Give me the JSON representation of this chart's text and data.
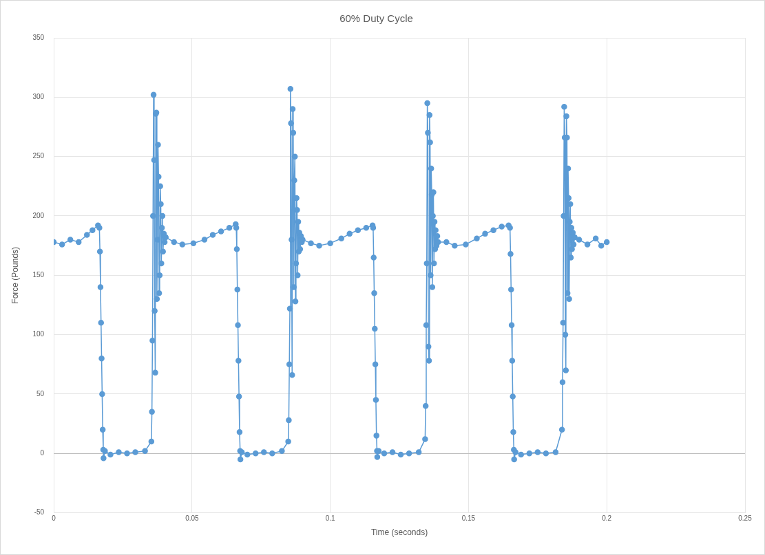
{
  "chart_data": {
    "type": "line",
    "title": "60% Duty Cycle",
    "xlabel": "Time (seconds)",
    "ylabel": "Force (Pounds)",
    "xlim": [
      0,
      0.25
    ],
    "xticks": [
      0,
      0.05,
      0.1,
      0.15,
      0.2,
      0.25
    ],
    "ylim": [
      -50,
      350
    ],
    "yticks": [
      -50,
      0,
      50,
      100,
      150,
      200,
      250,
      300,
      350
    ],
    "grid": true,
    "legend": false,
    "marker": "circle",
    "line_style": "solid",
    "series": [
      {
        "color": "#5b9bd5",
        "x": [
          0,
          0.003,
          0.006,
          0.009,
          0.012,
          0.014,
          0.016,
          0.0165,
          0.0167,
          0.0169,
          0.0171,
          0.0173,
          0.0175,
          0.0177,
          0.0179,
          0.018,
          0.0185,
          0.0205,
          0.0235,
          0.0265,
          0.0295,
          0.033,
          0.0353,
          0.0355,
          0.0357,
          0.0359,
          0.0361,
          0.0363,
          0.0365,
          0.0367,
          0.0369,
          0.0371,
          0.0373,
          0.0375,
          0.0377,
          0.0379,
          0.0381,
          0.0383,
          0.0385,
          0.0387,
          0.0389,
          0.0391,
          0.0393,
          0.0395,
          0.0398,
          0.0401,
          0.0405,
          0.0435,
          0.0465,
          0.0505,
          0.0545,
          0.0575,
          0.0605,
          0.0635,
          0.0658,
          0.066,
          0.0662,
          0.0664,
          0.0666,
          0.0668,
          0.067,
          0.0672,
          0.0674,
          0.0675,
          0.068,
          0.07,
          0.073,
          0.076,
          0.079,
          0.0825,
          0.0848,
          0.085,
          0.0852,
          0.0854,
          0.0856,
          0.0858,
          0.086,
          0.0862,
          0.0864,
          0.0866,
          0.0868,
          0.087,
          0.0872,
          0.0874,
          0.0876,
          0.0878,
          0.088,
          0.0882,
          0.0884,
          0.0886,
          0.0888,
          0.0891,
          0.0894,
          0.0897,
          0.09,
          0.093,
          0.096,
          0.1,
          0.104,
          0.107,
          0.11,
          0.113,
          0.1153,
          0.1155,
          0.1157,
          0.1159,
          0.1161,
          0.1163,
          0.1165,
          0.1167,
          0.1169,
          0.117,
          0.1175,
          0.1195,
          0.1225,
          0.1255,
          0.1285,
          0.132,
          0.1343,
          0.1345,
          0.1347,
          0.1349,
          0.1351,
          0.1353,
          0.1355,
          0.1357,
          0.1359,
          0.1361,
          0.1363,
          0.1365,
          0.1367,
          0.1369,
          0.1371,
          0.1373,
          0.1375,
          0.1377,
          0.1379,
          0.1381,
          0.1384,
          0.1387,
          0.139,
          0.142,
          0.145,
          0.149,
          0.153,
          0.156,
          0.159,
          0.162,
          0.1645,
          0.165,
          0.1652,
          0.1654,
          0.1656,
          0.1658,
          0.166,
          0.1662,
          0.1664,
          0.1665,
          0.167,
          0.169,
          0.172,
          0.175,
          0.178,
          0.1815,
          0.1838,
          0.184,
          0.1842,
          0.1844,
          0.1846,
          0.1848,
          0.185,
          0.1852,
          0.1854,
          0.1856,
          0.1858,
          0.186,
          0.1862,
          0.1864,
          0.1866,
          0.1868,
          0.187,
          0.1872,
          0.1874,
          0.1877,
          0.188,
          0.1884,
          0.19,
          0.193,
          0.196,
          0.198,
          0.2
        ],
        "values": [
          178,
          176,
          180,
          178,
          184,
          188,
          192,
          190,
          170,
          140,
          110,
          80,
          50,
          20,
          3,
          -4,
          2,
          -1,
          1,
          0,
          1,
          2,
          10,
          35,
          95,
          200,
          302,
          247,
          120,
          68,
          286,
          287,
          130,
          180,
          260,
          233,
          135,
          150,
          225,
          210,
          160,
          190,
          200,
          170,
          185,
          178,
          182,
          178,
          176,
          177,
          180,
          184,
          187,
          190,
          193,
          190,
          172,
          138,
          108,
          78,
          48,
          18,
          2,
          -5,
          1,
          -1,
          0,
          1,
          0,
          2,
          10,
          28,
          75,
          122,
          307,
          278,
          180,
          66,
          290,
          270,
          140,
          230,
          250,
          128,
          160,
          215,
          205,
          150,
          195,
          170,
          186,
          172,
          183,
          178,
          180,
          177,
          175,
          177,
          181,
          185,
          188,
          190,
          192,
          190,
          165,
          135,
          105,
          75,
          45,
          15,
          2,
          -3,
          2,
          0,
          1,
          -1,
          0,
          1,
          12,
          40,
          108,
          160,
          295,
          270,
          90,
          78,
          285,
          262,
          150,
          240,
          218,
          140,
          200,
          220,
          160,
          195,
          172,
          188,
          175,
          183,
          178,
          178,
          175,
          176,
          181,
          185,
          188,
          191,
          192,
          190,
          168,
          138,
          108,
          78,
          48,
          18,
          3,
          -5,
          1,
          -1,
          0,
          1,
          0,
          1,
          20,
          60,
          110,
          200,
          292,
          266,
          100,
          70,
          284,
          266,
          135,
          240,
          215,
          130,
          195,
          210,
          165,
          190,
          172,
          186,
          176,
          182,
          180,
          176,
          181,
          175,
          178
        ]
      }
    ]
  }
}
